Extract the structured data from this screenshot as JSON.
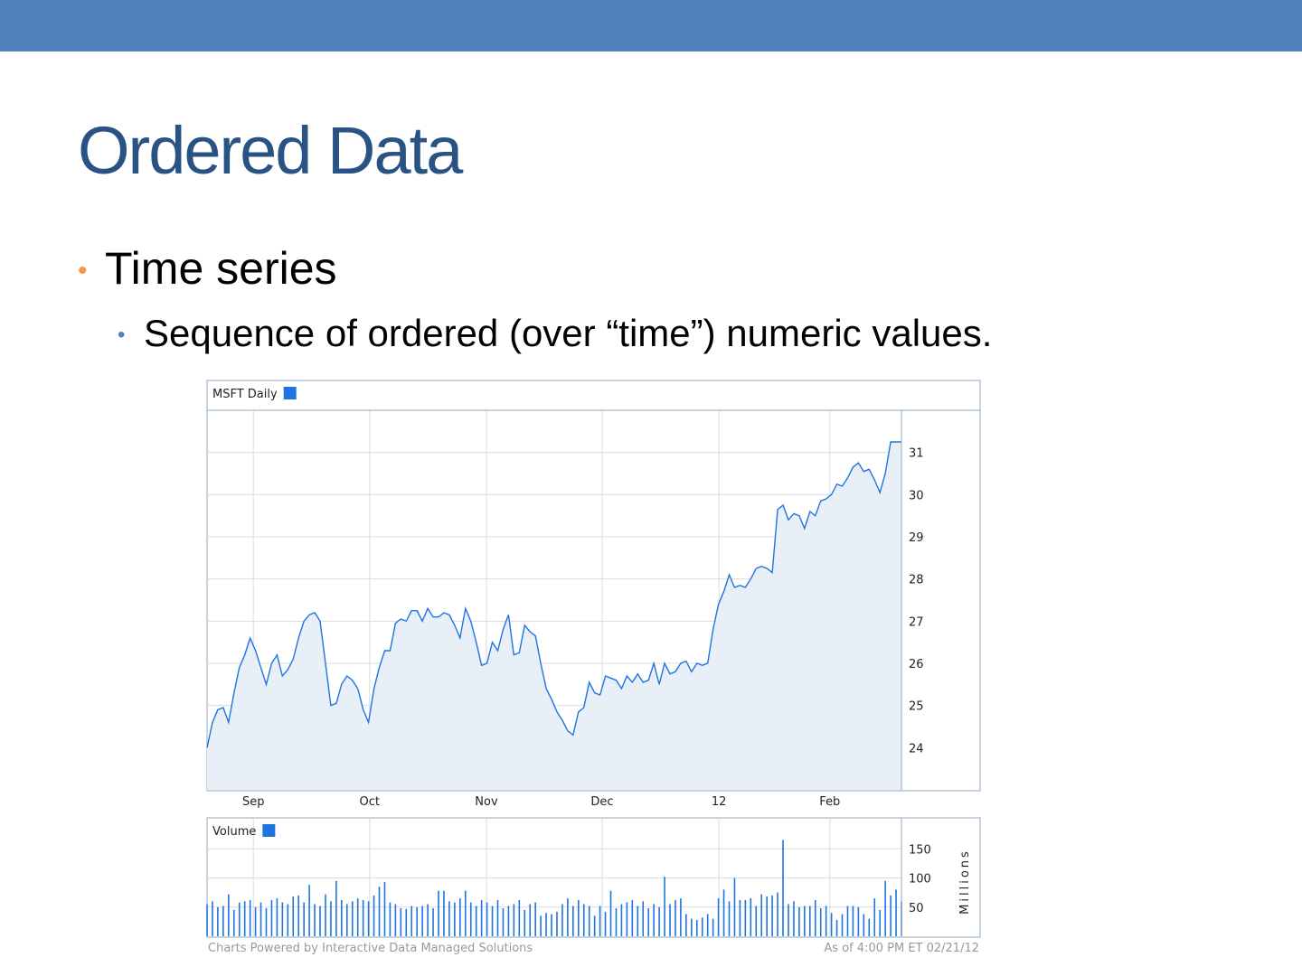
{
  "slide": {
    "title": "Ordered Data",
    "bullets": [
      {
        "text": "Time series",
        "sub": [
          "Sequence of ordered (over “time”) numeric values."
        ]
      }
    ]
  },
  "footer": {
    "left": "Charts Powered by Interactive Data Managed Solutions",
    "right": "As of 4:00 PM ET 02/21/12"
  },
  "chart_data": [
    {
      "type": "line",
      "area": true,
      "grid": true,
      "x": [
        0,
        1,
        2,
        3,
        4,
        5,
        6,
        7,
        8,
        9,
        10,
        11,
        12,
        13,
        14,
        15,
        16,
        17,
        18,
        19,
        20,
        21,
        22,
        23,
        24,
        25,
        26,
        27,
        28,
        29,
        30,
        31,
        32,
        33,
        34,
        35,
        36,
        37,
        38,
        39,
        40,
        41,
        42,
        43,
        44,
        45,
        46,
        47,
        48,
        49,
        50,
        51,
        52,
        53,
        54,
        55,
        56,
        57,
        58,
        59,
        60,
        61,
        62,
        63,
        64,
        65,
        66,
        67,
        68,
        69,
        70,
        71,
        72,
        73,
        74,
        75,
        76,
        77,
        78,
        79,
        80,
        81,
        82,
        83,
        84,
        85,
        86,
        87,
        88,
        89,
        90,
        91,
        92,
        93,
        94,
        95,
        96,
        97,
        98,
        99,
        100,
        101,
        102,
        103,
        104,
        105,
        106,
        107,
        108,
        109,
        110,
        111,
        112,
        113,
        114,
        115,
        116,
        117,
        118,
        119,
        120,
        121,
        122,
        123,
        124,
        125,
        126,
        127,
        128,
        129
      ],
      "series": [
        {
          "name": "MSFT Daily",
          "color": "#1f74e0",
          "values": [
            24.0,
            24.6,
            24.9,
            24.95,
            24.6,
            25.3,
            25.9,
            26.2,
            26.6,
            26.3,
            25.9,
            25.5,
            26.0,
            26.2,
            25.7,
            25.85,
            26.1,
            26.6,
            27.0,
            27.15,
            27.2,
            27.0,
            26.0,
            25.0,
            25.05,
            25.5,
            25.7,
            25.6,
            25.4,
            24.9,
            24.6,
            25.4,
            25.9,
            26.3,
            26.3,
            26.95,
            27.05,
            27.0,
            27.25,
            27.25,
            27.0,
            27.3,
            27.1,
            27.1,
            27.2,
            27.15,
            26.9,
            26.6,
            27.3,
            27.0,
            26.5,
            25.95,
            26.0,
            26.5,
            26.3,
            26.8,
            27.15,
            26.2,
            26.25,
            26.9,
            26.75,
            26.65,
            26.0,
            25.4,
            25.15,
            24.85,
            24.65,
            24.4,
            24.3,
            24.85,
            24.95,
            25.55,
            25.3,
            25.25,
            25.7,
            25.65,
            25.6,
            25.4,
            25.7,
            25.55,
            25.75,
            25.55,
            25.6,
            26.0,
            25.5,
            26.0,
            25.75,
            25.8,
            26.0,
            26.05,
            25.8,
            26.0,
            25.95,
            26.0,
            26.8,
            27.4,
            27.7,
            28.1,
            27.8,
            27.85,
            27.8,
            28.0,
            28.25,
            28.3,
            28.25,
            28.15,
            29.65,
            29.75,
            29.4,
            29.55,
            29.5,
            29.2,
            29.6,
            29.5,
            29.85,
            29.9,
            30.0,
            30.25,
            30.2,
            30.4,
            30.65,
            30.75,
            30.55,
            30.6,
            30.35,
            30.05,
            30.5,
            31.25,
            31.25,
            31.25
          ]
        }
      ],
      "xlim": [
        0,
        129
      ],
      "xticks": [
        {
          "value": 8.6,
          "label": "Sep"
        },
        {
          "value": 30.2,
          "label": "Oct"
        },
        {
          "value": 51.9,
          "label": "Nov"
        },
        {
          "value": 73.4,
          "label": "Dec"
        },
        {
          "value": 95.1,
          "label": "12"
        },
        {
          "value": 115.7,
          "label": "Feb"
        }
      ],
      "ylim": [
        23,
        32
      ],
      "yticks": [
        24,
        25,
        26,
        27,
        28,
        29,
        30,
        31
      ]
    },
    {
      "type": "bar",
      "grid": true,
      "y_label": "Millions",
      "x": [
        0,
        1,
        2,
        3,
        4,
        5,
        6,
        7,
        8,
        9,
        10,
        11,
        12,
        13,
        14,
        15,
        16,
        17,
        18,
        19,
        20,
        21,
        22,
        23,
        24,
        25,
        26,
        27,
        28,
        29,
        30,
        31,
        32,
        33,
        34,
        35,
        36,
        37,
        38,
        39,
        40,
        41,
        42,
        43,
        44,
        45,
        46,
        47,
        48,
        49,
        50,
        51,
        52,
        53,
        54,
        55,
        56,
        57,
        58,
        59,
        60,
        61,
        62,
        63,
        64,
        65,
        66,
        67,
        68,
        69,
        70,
        71,
        72,
        73,
        74,
        75,
        76,
        77,
        78,
        79,
        80,
        81,
        82,
        83,
        84,
        85,
        86,
        87,
        88,
        89,
        90,
        91,
        92,
        93,
        94,
        95,
        96,
        97,
        98,
        99,
        100,
        101,
        102,
        103,
        104,
        105,
        106,
        107,
        108,
        109,
        110,
        111,
        112,
        113,
        114,
        115,
        116,
        117,
        118,
        119,
        120,
        121,
        122,
        123,
        124,
        125,
        126,
        127,
        128,
        129
      ],
      "series": [
        {
          "name": "Volume",
          "color": "#1f74e0",
          "values": [
            55,
            60,
            50,
            52,
            72,
            45,
            58,
            60,
            62,
            50,
            58,
            48,
            62,
            65,
            58,
            55,
            68,
            70,
            58,
            88,
            55,
            52,
            72,
            60,
            95,
            62,
            55,
            60,
            65,
            62,
            60,
            70,
            85,
            93,
            58,
            55,
            48,
            47,
            52,
            50,
            52,
            55,
            48,
            78,
            78,
            60,
            58,
            65,
            78,
            58,
            52,
            62,
            58,
            52,
            62,
            48,
            52,
            55,
            62,
            45,
            55,
            58,
            35,
            40,
            38,
            42,
            55,
            65,
            52,
            62,
            55,
            52,
            35,
            52,
            42,
            78,
            48,
            55,
            58,
            62,
            52,
            60,
            48,
            55,
            50,
            102,
            55,
            62,
            65,
            38,
            30,
            28,
            32,
            38,
            30,
            65,
            80,
            60,
            100,
            62,
            62,
            65,
            52,
            72,
            68,
            70,
            75,
            165,
            55,
            60,
            50,
            52,
            52,
            62,
            48,
            52,
            40,
            28,
            38,
            52,
            52,
            50,
            38,
            30,
            65,
            45,
            95,
            70,
            80,
            60
          ]
        }
      ],
      "xlim": [
        0,
        129
      ],
      "ylim": [
        0,
        200
      ],
      "yticks": [
        50,
        100,
        150
      ]
    }
  ]
}
